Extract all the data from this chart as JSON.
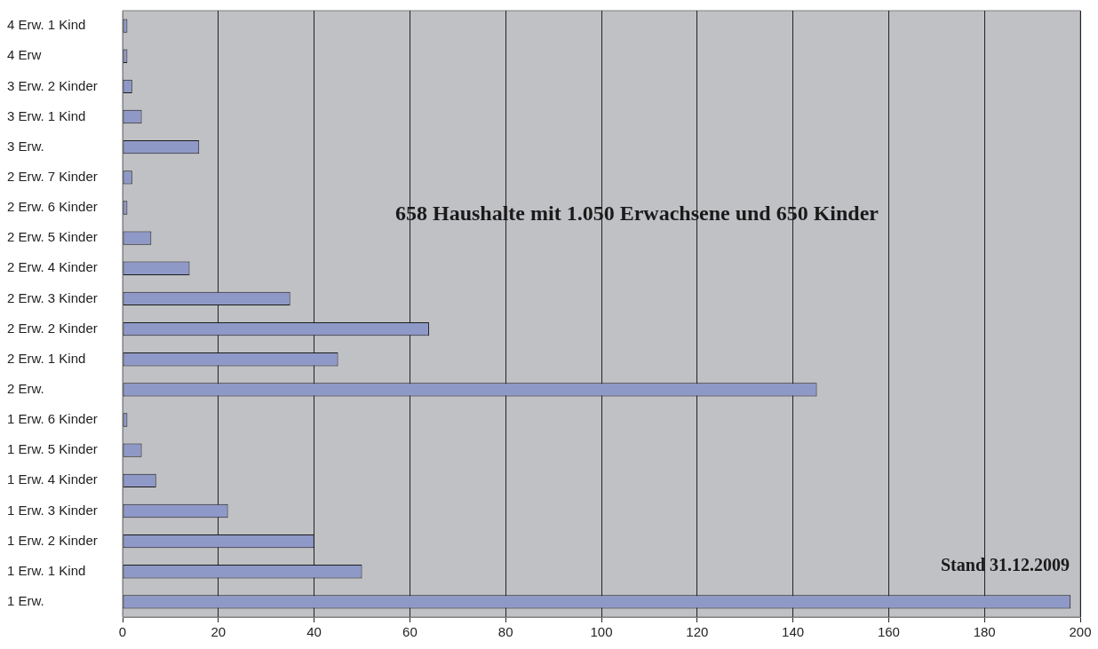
{
  "chart_data": {
    "type": "bar",
    "orientation": "horizontal",
    "title": "658 Haushalte mit 1.050 Erwachsene und 650 Kinder",
    "categories": [
      "4 Erw. 1 Kind",
      "4 Erw",
      "3 Erw. 2 Kinder",
      "3 Erw. 1 Kind",
      "3 Erw.",
      "2 Erw. 7 Kinder",
      "2 Erw. 6 Kinder",
      "2 Erw. 5 Kinder",
      "2 Erw. 4 Kinder",
      "2 Erw. 3 Kinder",
      "2 Erw. 2 Kinder",
      "2 Erw. 1 Kind",
      "2 Erw.",
      "1 Erw. 6 Kinder",
      "1 Erw. 5 Kinder",
      "1 Erw. 4 Kinder",
      "1 Erw. 3 Kinder",
      "1 Erw. 2 Kinder",
      "1 Erw. 1 Kind",
      "1 Erw."
    ],
    "values": [
      1,
      1,
      2,
      4,
      16,
      2,
      1,
      6,
      14,
      35,
      64,
      45,
      145,
      1,
      4,
      7,
      22,
      40,
      50,
      198
    ],
    "color": "#8f99c8",
    "xlim": [
      0,
      200
    ],
    "xticks": [
      0,
      20,
      40,
      60,
      80,
      100,
      120,
      140,
      160,
      180,
      200
    ],
    "grid": "x",
    "legend": false,
    "annotations": [
      "Stand 31.12.2009"
    ]
  }
}
